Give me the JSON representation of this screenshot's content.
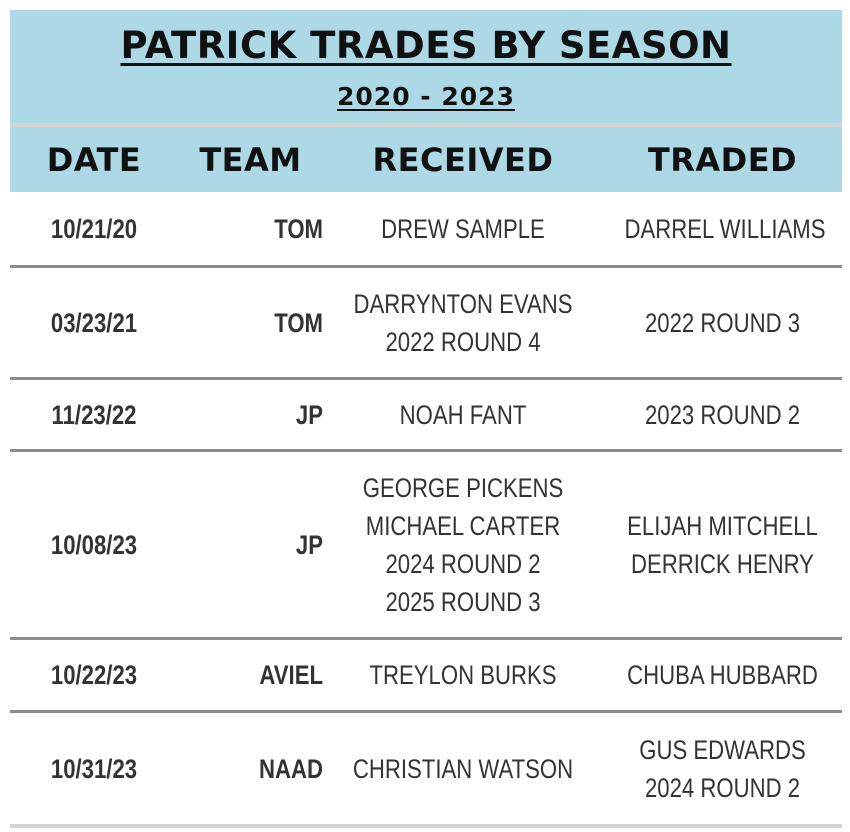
{
  "title": "PATRICK TRADES BY SEASON",
  "subtitle": "2020 - 2023",
  "columns": {
    "date": "DATE",
    "team": "TEAM",
    "received": "RECEIVED",
    "traded": "TRADED"
  },
  "colors": {
    "header_bg": "#add8e6",
    "divider": "#8c8c8c",
    "text": "#333333"
  },
  "rows": [
    {
      "date": "10/21/20",
      "team": "TOM",
      "received": [
        "DREW SAMPLE"
      ],
      "traded": [
        "DARREL WILLIAMS"
      ]
    },
    {
      "date": "03/23/21",
      "team": "TOM",
      "received": [
        "DARRYNTON EVANS",
        "2022 ROUND 4"
      ],
      "traded": [
        "2022 ROUND 3"
      ]
    },
    {
      "date": "11/23/22",
      "team": "JP",
      "received": [
        "NOAH FANT"
      ],
      "traded": [
        "2023 ROUND 2"
      ]
    },
    {
      "date": "10/08/23",
      "team": "JP",
      "received": [
        "GEORGE PICKENS",
        "MICHAEL CARTER",
        "2024 ROUND 2",
        "2025 ROUND 3"
      ],
      "traded": [
        "ELIJAH MITCHELL",
        "DERRICK HENRY"
      ]
    },
    {
      "date": "10/22/23",
      "team": "AVIEL",
      "received": [
        "TREYLON BURKS"
      ],
      "traded": [
        "CHUBA HUBBARD"
      ]
    },
    {
      "date": "10/31/23",
      "team": "NAAD",
      "received": [
        "CHRISTIAN WATSON"
      ],
      "traded": [
        "GUS EDWARDS",
        "2024 ROUND 2"
      ]
    }
  ]
}
